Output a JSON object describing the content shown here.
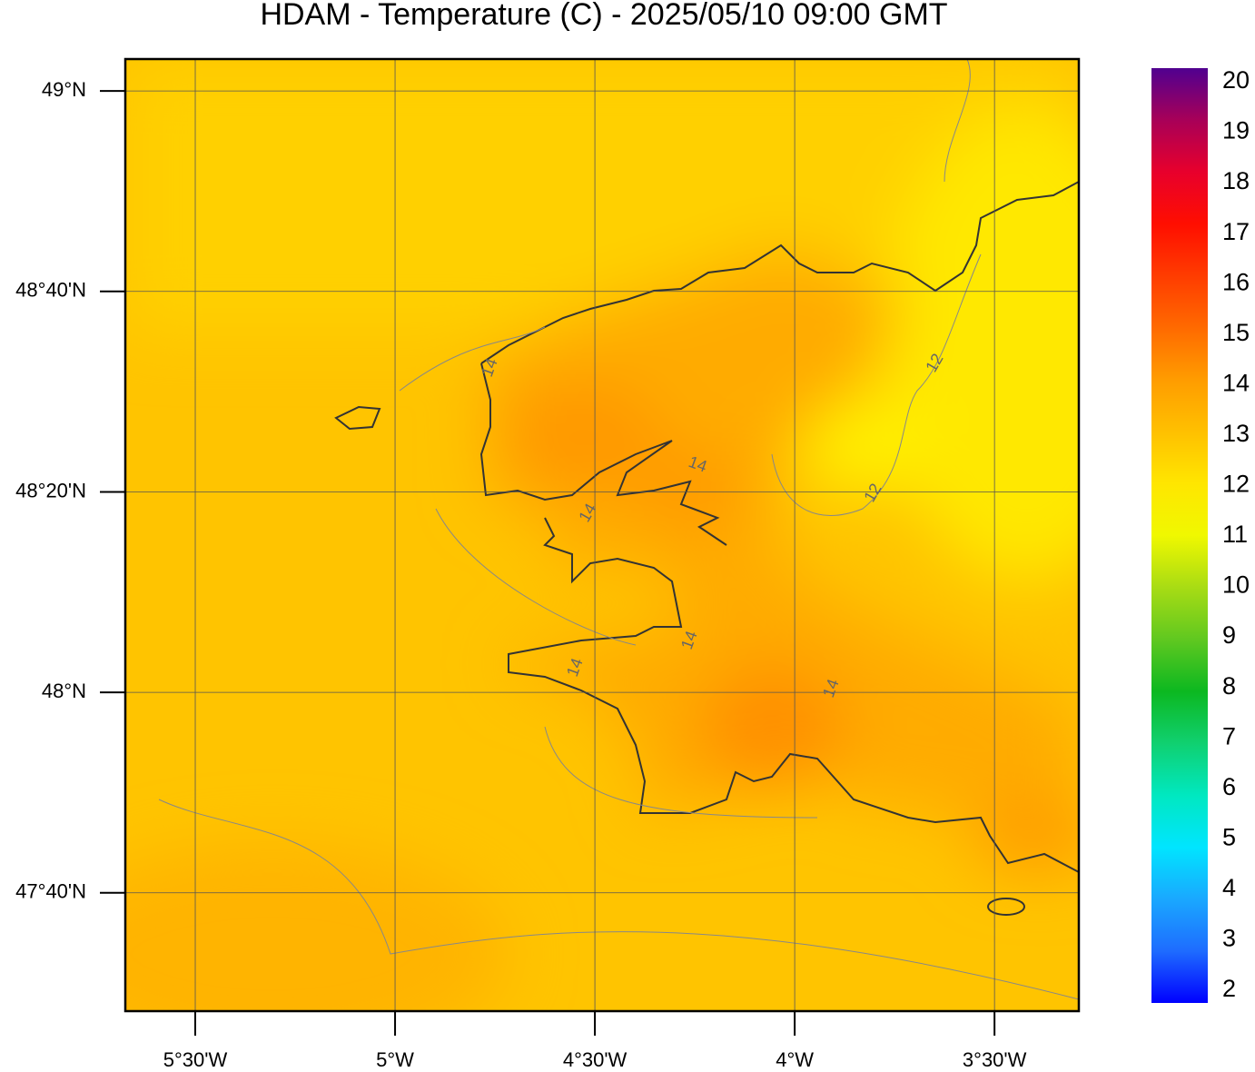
{
  "title": "HDAM - Temperature (C)  -  2025/05/10  09:00 GMT",
  "map": {
    "xlim": [
      -5.675,
      -3.289
    ],
    "ylim": [
      47.47,
      49.053
    ],
    "lat_ticks": [
      {
        "value": 49,
        "label": "49°N"
      },
      {
        "value": 48.6667,
        "label": "48°40'N"
      },
      {
        "value": 48.3333,
        "label": "48°20'N"
      },
      {
        "value": 48,
        "label": "48°N"
      },
      {
        "value": 47.6667,
        "label": "47°40'N"
      }
    ],
    "lon_ticks": [
      {
        "value": -5.5,
        "label": "5°30'W"
      },
      {
        "value": -5,
        "label": "5°W"
      },
      {
        "value": -4.5,
        "label": "4°30'W"
      },
      {
        "value": -4,
        "label": "4°W"
      },
      {
        "value": -3.5,
        "label": "3°30'W"
      }
    ],
    "contour_labels": [
      14,
      14,
      14,
      14,
      14,
      14,
      12,
      12
    ]
  },
  "colorbar": {
    "labels": [
      2,
      3,
      4,
      5,
      6,
      7,
      8,
      9,
      10,
      11,
      12,
      13,
      14,
      15,
      16,
      17,
      18,
      19,
      20
    ],
    "colors": [
      "#0000ff",
      "#1e6cff",
      "#1aa8ff",
      "#00e5ff",
      "#00e8c0",
      "#10d070",
      "#0cb820",
      "#60c820",
      "#a8dc14",
      "#f0f800",
      "#ffe600",
      "#ffc000",
      "#ff9c00",
      "#ff6a00",
      "#ff3c00",
      "#ff0e00",
      "#e8002c",
      "#a80058",
      "#500090"
    ]
  }
}
